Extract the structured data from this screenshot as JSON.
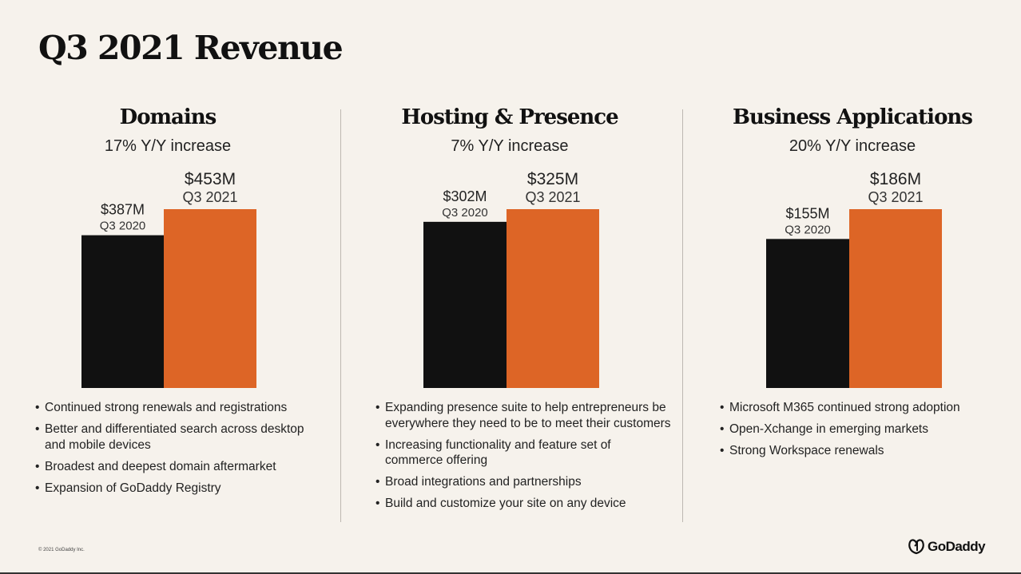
{
  "title": "Q3 2021 Revenue",
  "colors": {
    "prior": "#111111",
    "current": "#dd6526",
    "background": "#f6f2ec"
  },
  "chart_data": [
    {
      "type": "bar",
      "title": "Domains",
      "subtitle": "17% Y/Y increase",
      "categories": [
        "Q3 2020",
        "Q3 2021"
      ],
      "values": [
        387,
        453
      ],
      "value_labels": [
        "$387M",
        "$453M"
      ],
      "unit": "$M",
      "bullets": [
        "Continued strong renewals and registrations",
        "Better and differentiated search across desktop and mobile devices",
        "Broadest and deepest domain aftermarket",
        "Expansion of GoDaddy Registry"
      ]
    },
    {
      "type": "bar",
      "title": "Hosting & Presence",
      "subtitle": "7% Y/Y increase",
      "categories": [
        "Q3 2020",
        "Q3 2021"
      ],
      "values": [
        302,
        325
      ],
      "value_labels": [
        "$302M",
        "$325M"
      ],
      "unit": "$M",
      "bullets": [
        "Expanding presence suite to help entrepreneurs be everywhere they need to be to meet their customers",
        "Increasing functionality and feature set of commerce offering",
        "Broad integrations and partnerships",
        "Build and customize your site on any device"
      ]
    },
    {
      "type": "bar",
      "title": "Business Applications",
      "subtitle": "20% Y/Y increase",
      "categories": [
        "Q3 2020",
        "Q3 2021"
      ],
      "values": [
        155,
        186
      ],
      "value_labels": [
        "$155M",
        "$186M"
      ],
      "unit": "$M",
      "bullets": [
        "Microsoft M365 continued strong adoption",
        "Open-Xchange in emerging markets",
        "Strong Workspace renewals"
      ]
    }
  ],
  "footer": {
    "copyright": "© 2021 GoDaddy Inc.",
    "logo": "GoDaddy"
  }
}
